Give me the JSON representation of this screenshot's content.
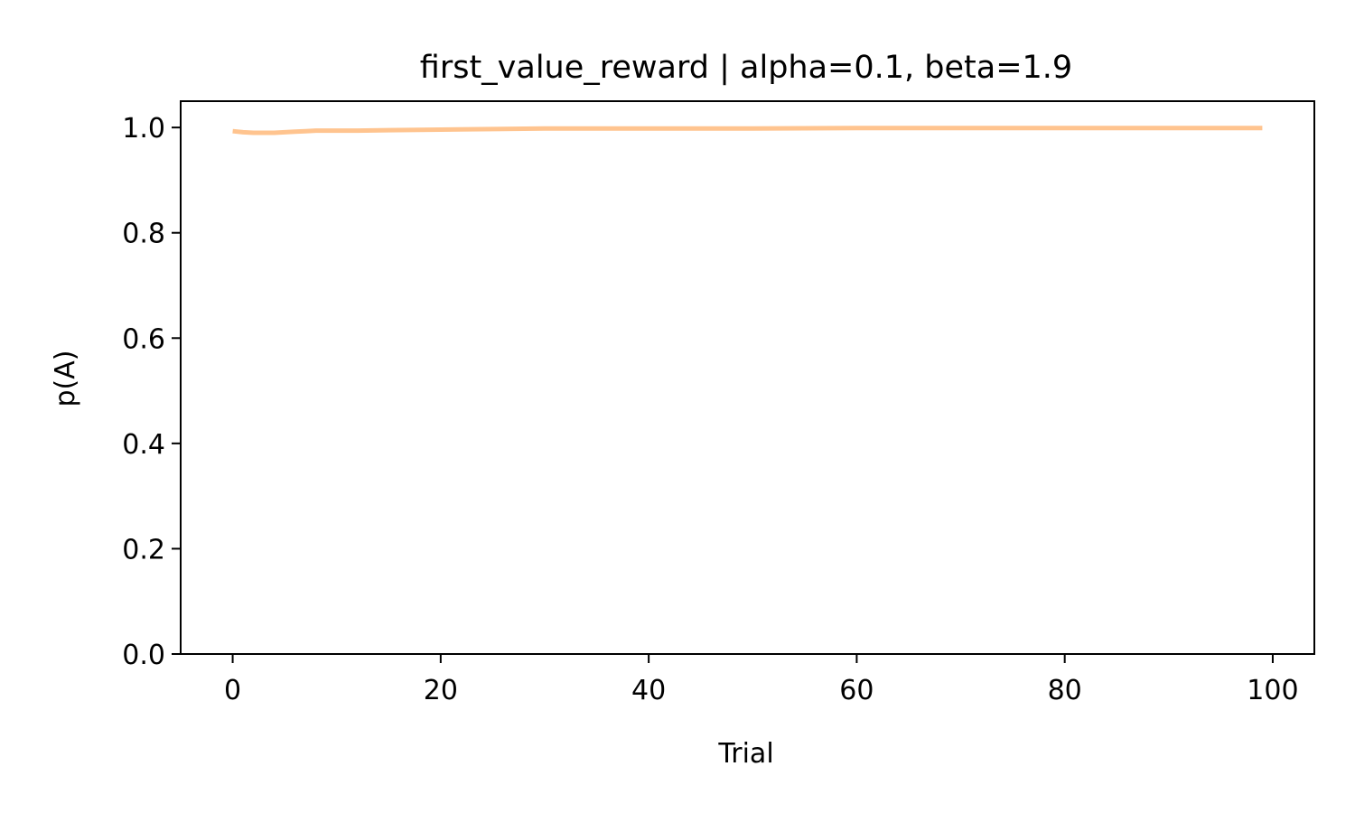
{
  "chart_data": {
    "type": "line",
    "title": "first_value_reward | alpha=0.1, beta=1.9",
    "xlabel": "Trial",
    "ylabel": "p(A)",
    "xlim": [
      -5,
      104
    ],
    "ylim": [
      0,
      1.05
    ],
    "xticks": [
      0,
      20,
      40,
      60,
      80,
      100
    ],
    "xtick_labels": [
      "0",
      "20",
      "40",
      "60",
      "80",
      "100"
    ],
    "yticks": [
      0,
      0.2,
      0.4,
      0.6,
      0.8,
      1.0
    ],
    "ytick_labels": [
      "0.0",
      "0.2",
      "0.4",
      "0.6",
      "0.8",
      "1.0"
    ],
    "grid": false,
    "legend": "none",
    "series": [
      {
        "color": "#ffc48f",
        "x": [
          0,
          1,
          2,
          3,
          4,
          5,
          6,
          7,
          8,
          10,
          12,
          15,
          20,
          25,
          30,
          40,
          50,
          60,
          70,
          80,
          90,
          99
        ],
        "y": [
          0.993,
          0.991,
          0.99,
          0.99,
          0.99,
          0.991,
          0.992,
          0.993,
          0.994,
          0.994,
          0.994,
          0.995,
          0.996,
          0.997,
          0.998,
          0.998,
          0.998,
          0.999,
          0.999,
          0.999,
          0.999,
          0.999
        ]
      }
    ]
  }
}
